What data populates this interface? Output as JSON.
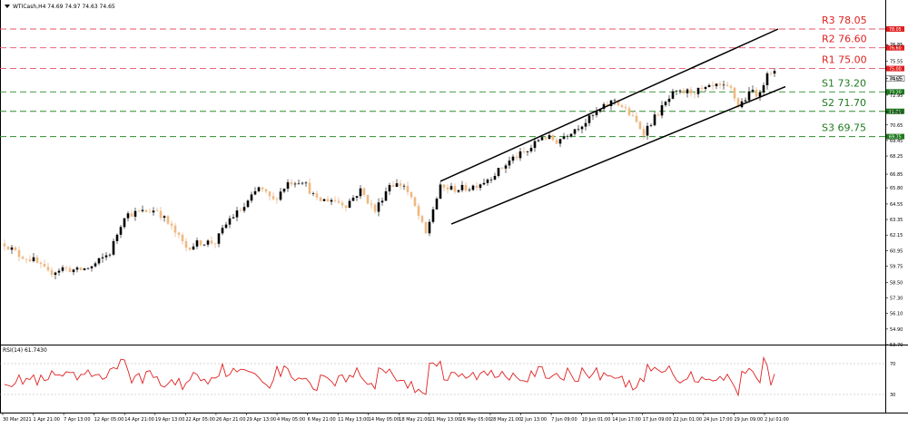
{
  "header": {
    "symbol_line": "WTICash,H4  74.69 74.97 74.63 74.65"
  },
  "indicator": {
    "label": "RSI(14) 61.7430",
    "levels": [
      70,
      30
    ],
    "level_labels": [
      "70",
      "30"
    ],
    "ylim": [
      10,
      90
    ]
  },
  "chart_data": {
    "type": "candlestick",
    "ylim": [
      53.7,
      79.5
    ],
    "price_ticks": [
      {
        "label": "76.85",
        "value": 76.85
      },
      {
        "label": "75.55",
        "value": 75.55
      },
      {
        "label": "74.25",
        "value": 74.25
      },
      {
        "label": "72.95",
        "value": 72.95
      },
      {
        "label": "71.65",
        "value": 71.65
      },
      {
        "label": "70.65",
        "value": 70.65
      },
      {
        "label": "69.45",
        "value": 69.45
      },
      {
        "label": "68.25",
        "value": 68.25
      },
      {
        "label": "66.85",
        "value": 66.85
      },
      {
        "label": "65.80",
        "value": 65.8
      },
      {
        "label": "64.55",
        "value": 64.55
      },
      {
        "label": "63.35",
        "value": 63.35
      },
      {
        "label": "62.15",
        "value": 62.15
      },
      {
        "label": "60.95",
        "value": 60.95
      },
      {
        "label": "59.75",
        "value": 59.75
      },
      {
        "label": "58.50",
        "value": 58.5
      },
      {
        "label": "57.30",
        "value": 57.3
      },
      {
        "label": "56.10",
        "value": 56.1
      },
      {
        "label": "54.90",
        "value": 54.9
      },
      {
        "label": "53.70",
        "value": 53.7
      }
    ],
    "current_price": {
      "label": "74.65",
      "value": 74.65
    },
    "levels": [
      {
        "name": "R3",
        "label": "R3 78.05",
        "value": 78.05,
        "tag": "78.05",
        "kind": "resistance"
      },
      {
        "name": "R2",
        "label": "R2 76.60",
        "value": 76.6,
        "tag": "76.60",
        "kind": "resistance"
      },
      {
        "name": "R1",
        "label": "R1 75.00",
        "value": 75.0,
        "tag": "75.00",
        "kind": "resistance"
      },
      {
        "name": "S1",
        "label": "S1 73.20",
        "value": 73.2,
        "tag": "73.20",
        "kind": "support"
      },
      {
        "name": "S2",
        "label": "S2 71.70",
        "value": 71.7,
        "tag": "71.70",
        "kind": "support"
      },
      {
        "name": "S3",
        "label": "S3 69.75",
        "value": 69.75,
        "tag": "69.75",
        "kind": "support"
      }
    ],
    "x_labels": [
      "30 Mar 2021",
      "1 Apr 21:00",
      "7 Apr 13:00",
      "12 Apr 05:00",
      "14 Apr 21:00",
      "19 Apr 13:00",
      "22 Apr 05:00",
      "26 Apr 21:00",
      "29 Apr 13:00",
      "4 May 05:00",
      "6 May 21:00",
      "11 May 13:00",
      "14 May 05:00",
      "18 May 21:00",
      "21 May 13:00",
      "26 May 05:00",
      "28 May 21:00",
      "2 Jun 13:00",
      "7 Jun 09:00",
      "10 Jun 01:00",
      "14 Jun 17:00",
      "17 Jun 09:00",
      "22 Jun 01:00",
      "24 Jun 17:00",
      "29 Jun 09:00",
      "2 Jul 01:00"
    ],
    "channel": {
      "upper": {
        "start_bar": 120,
        "start_price": 66.3,
        "end_bar": 213,
        "end_price": 78.05
      },
      "lower": {
        "start_bar": 123,
        "start_price": 63.0,
        "end_bar": 215,
        "end_price": 73.6
      }
    },
    "anchors": [
      [
        0,
        61.5
      ],
      [
        4,
        60.6
      ],
      [
        8,
        60.2
      ],
      [
        12,
        59.2
      ],
      [
        16,
        59.6
      ],
      [
        20,
        59.4
      ],
      [
        24,
        59.7
      ],
      [
        29,
        60.8
      ],
      [
        33,
        63.7
      ],
      [
        37,
        63.9
      ],
      [
        42,
        64.1
      ],
      [
        46,
        62.7
      ],
      [
        50,
        61.2
      ],
      [
        54,
        61.6
      ],
      [
        58,
        61.6
      ],
      [
        62,
        63.4
      ],
      [
        66,
        64.3
      ],
      [
        70,
        65.8
      ],
      [
        74,
        64.8
      ],
      [
        78,
        66.2
      ],
      [
        82,
        66.4
      ],
      [
        86,
        64.8
      ],
      [
        90,
        64.9
      ],
      [
        94,
        64.5
      ],
      [
        98,
        65.6
      ],
      [
        102,
        64.0
      ],
      [
        106,
        66.1
      ],
      [
        110,
        66.0
      ],
      [
        113,
        64.3
      ],
      [
        116,
        62.2
      ],
      [
        118,
        64.2
      ],
      [
        120,
        65.8
      ],
      [
        124,
        65.7
      ],
      [
        128,
        65.8
      ],
      [
        132,
        66.3
      ],
      [
        136,
        67.1
      ],
      [
        140,
        68.1
      ],
      [
        144,
        68.6
      ],
      [
        148,
        69.8
      ],
      [
        152,
        69.4
      ],
      [
        156,
        70.2
      ],
      [
        160,
        70.9
      ],
      [
        164,
        71.8
      ],
      [
        168,
        72.6
      ],
      [
        172,
        71.5
      ],
      [
        176,
        70.1
      ],
      [
        180,
        71.6
      ],
      [
        184,
        73.0
      ],
      [
        188,
        73.2
      ],
      [
        192,
        73.3
      ],
      [
        196,
        73.6
      ],
      [
        200,
        73.4
      ],
      [
        202,
        72.1
      ],
      [
        204,
        72.7
      ],
      [
        206,
        73.3
      ],
      [
        208,
        72.9
      ],
      [
        210,
        74.9
      ],
      [
        212,
        74.65
      ]
    ],
    "bar_count": 213
  }
}
